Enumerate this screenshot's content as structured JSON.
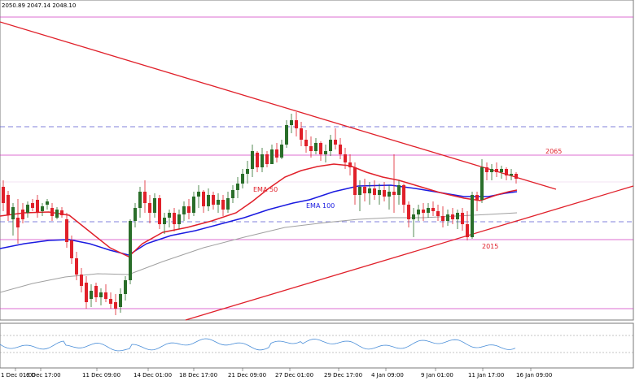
{
  "header": {
    "ohlc_text": "2050.89 2047.14 2048.10"
  },
  "levels": {
    "resistance_label": "2065",
    "support_label": "2015"
  },
  "indicators": {
    "ema50_label": "EMA 50",
    "ema100_label": "EMA 100",
    "ema50_color": "#e0202a",
    "ema100_color": "#1a1ae0",
    "ema200_color": "#a0a0a0"
  },
  "colors": {
    "bull": "#2a6e2a",
    "bear": "#e0202a",
    "trendline": "#e0202a",
    "horizontal_level": "#d03cc0",
    "dashed_level": "#5a5ad0",
    "oscillator": "#4a8ed8"
  },
  "time_axis": {
    "labels": [
      "1 Dec 01:00",
      "6 Dec 17:00",
      "11 Dec 09:00",
      "14 Dec 01:00",
      "18 Dec 17:00",
      "21 Dec 09:00",
      "27 Dec 01:00",
      "29 Dec 17:00",
      "4 Jan 09:00",
      "9 Jan 01:00",
      "11 Jan 17:00",
      "16 Jan 09:00"
    ]
  },
  "chart_data": {
    "type": "candlestick",
    "series": [
      {
        "name": "EMA 50"
      },
      {
        "name": "EMA 100"
      }
    ],
    "horizontal_levels": [
      2065,
      2015
    ],
    "annotations": [
      "2065",
      "2015",
      "EMA 50",
      "EMA 100"
    ]
  }
}
